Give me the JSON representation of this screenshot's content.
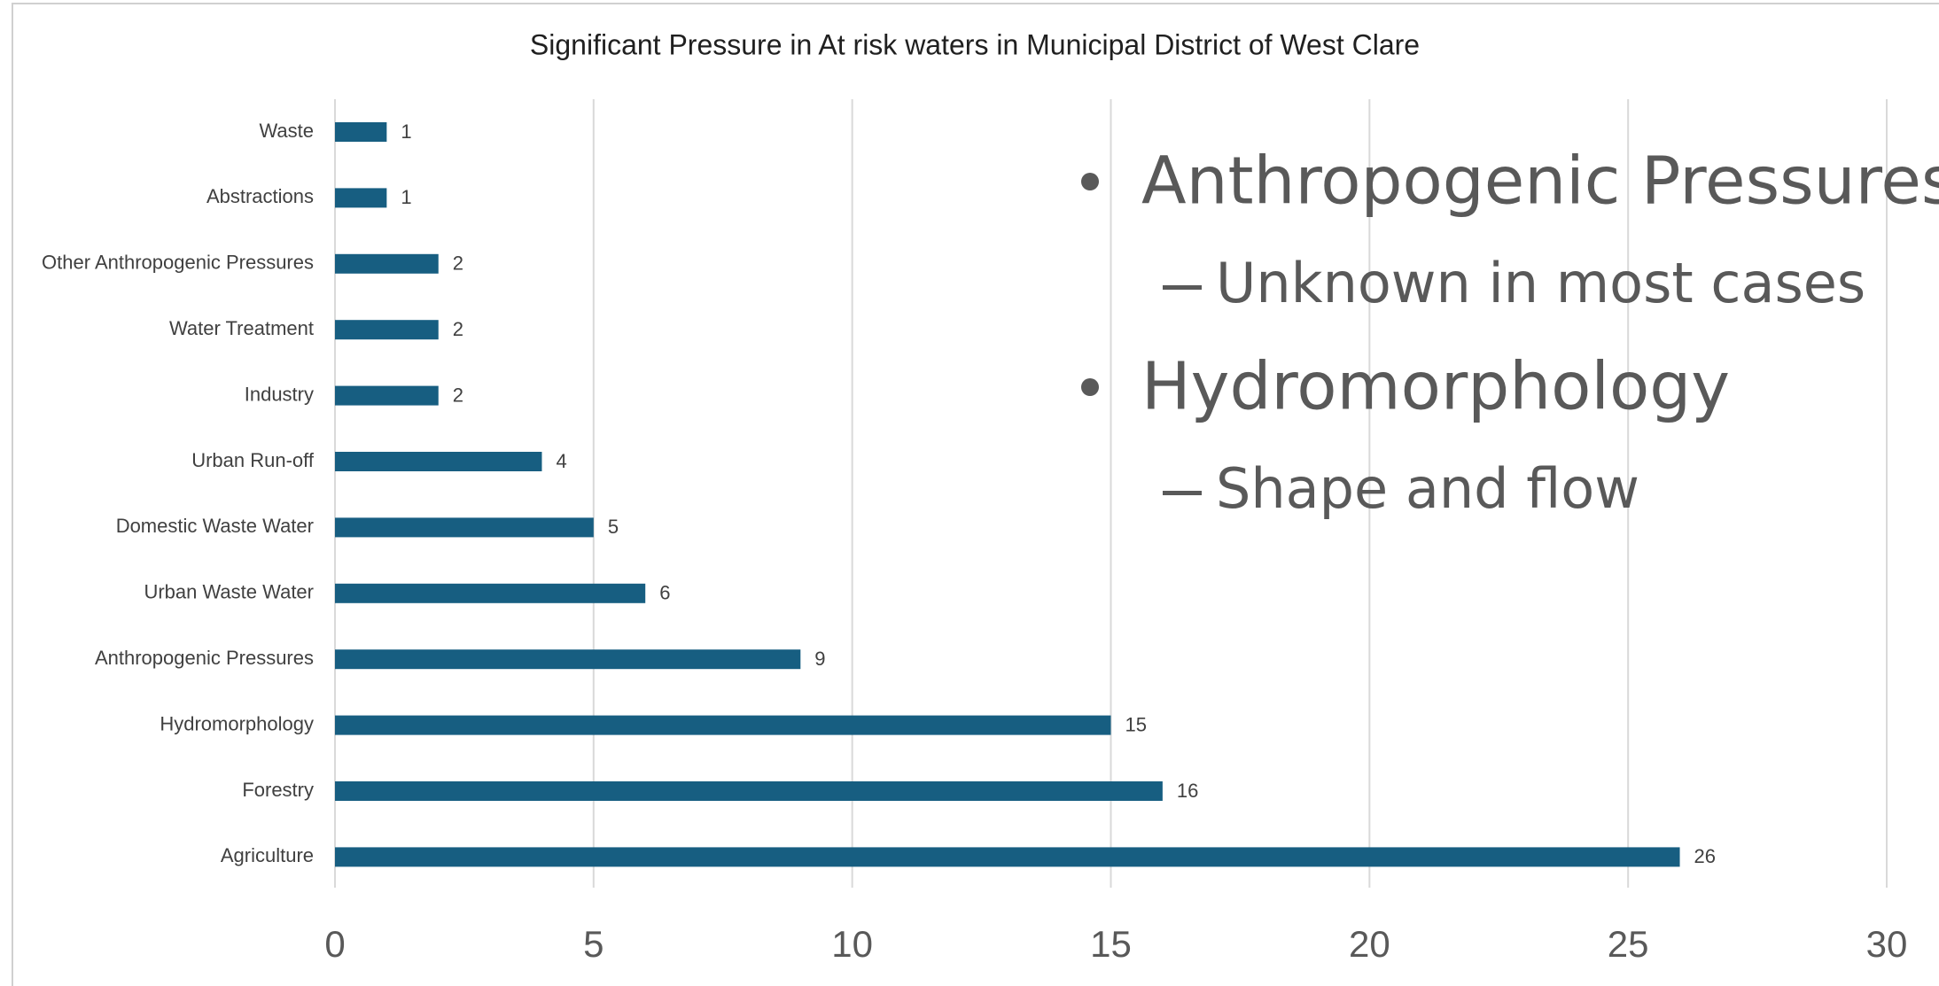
{
  "chart_data": {
    "type": "bar",
    "orientation": "horizontal",
    "title": "Significant Pressure in At risk waters in Municipal District of West Clare",
    "categories": [
      "Waste",
      "Abstractions",
      "Other Anthropogenic Pressures",
      "Water Treatment",
      "Industry",
      "Urban Run-off",
      "Domestic Waste Water",
      "Urban Waste Water",
      "Anthropogenic Pressures",
      "Hydromorphology",
      "Forestry",
      "Agriculture"
    ],
    "values": [
      1,
      1,
      2,
      2,
      2,
      4,
      5,
      6,
      9,
      15,
      16,
      26
    ],
    "color": "#175e81",
    "xlim": [
      0,
      30
    ],
    "xticks": [
      0,
      5,
      10,
      15,
      20,
      25,
      30
    ],
    "grid": true,
    "bullets": [
      {
        "text": "Anthropogenic Pressures",
        "sub": [
          "Unknown in most cases"
        ]
      },
      {
        "text": "Hydromorphology",
        "sub": [
          "Shape and flow"
        ]
      }
    ]
  }
}
